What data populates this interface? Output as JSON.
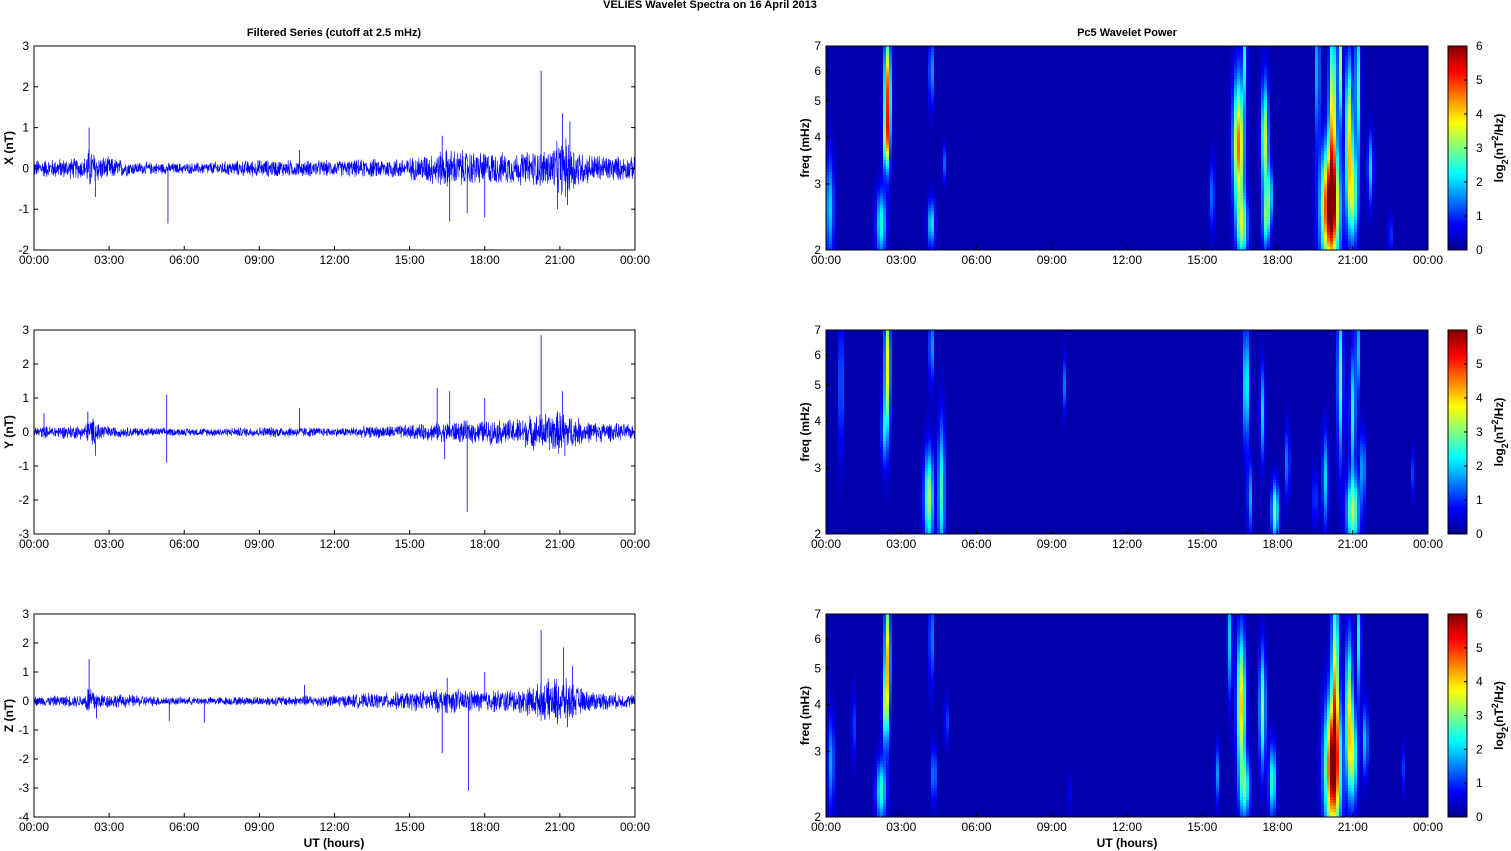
{
  "figure": {
    "title": "VELIES Wavelet Spectra on 16 April     2013",
    "left_title": "Filtered Series (cutoff at 2.5 mHz)",
    "right_title": "Pc5 Wavelet Power",
    "x_axis_label": "UT (hours)"
  },
  "chart_data": [
    {
      "type": "line",
      "component": "X",
      "ylabel": "X (nT)",
      "xlabel": "",
      "x_ticks": [
        "00:00",
        "03:00",
        "06:00",
        "09:00",
        "12:00",
        "15:00",
        "18:00",
        "21:00",
        "00:00"
      ],
      "xlim_hours": [
        0,
        24
      ],
      "ylim": [
        -2,
        3
      ],
      "y_ticks": [
        -2,
        -1,
        0,
        1,
        2,
        3
      ],
      "line_color": "#0000ff",
      "envelope": [
        [
          0,
          0.2
        ],
        [
          2,
          0.25
        ],
        [
          2.2,
          0.5
        ],
        [
          2.6,
          0.3
        ],
        [
          4,
          0.15
        ],
        [
          6,
          0.12
        ],
        [
          9,
          0.2
        ],
        [
          12,
          0.18
        ],
        [
          15,
          0.25
        ],
        [
          16.5,
          0.45
        ],
        [
          17.5,
          0.4
        ],
        [
          19,
          0.35
        ],
        [
          20.5,
          0.45
        ],
        [
          21.2,
          0.7
        ],
        [
          22,
          0.35
        ],
        [
          24,
          0.25
        ]
      ],
      "spikes": [
        [
          2.2,
          1.0
        ],
        [
          2.45,
          -0.7
        ],
        [
          5.35,
          -1.35
        ],
        [
          10.6,
          0.45
        ],
        [
          16.3,
          0.8
        ],
        [
          16.6,
          -1.3
        ],
        [
          17.3,
          -1.1
        ],
        [
          18.0,
          -1.2
        ],
        [
          20.25,
          2.4
        ],
        [
          20.9,
          -1.0
        ],
        [
          21.1,
          1.35
        ],
        [
          21.4,
          1.15
        ],
        [
          21.3,
          -0.9
        ]
      ]
    },
    {
      "type": "line",
      "component": "Y",
      "ylabel": "Y (nT)",
      "xlabel": "",
      "x_ticks": [
        "00:00",
        "03:00",
        "06:00",
        "09:00",
        "12:00",
        "15:00",
        "18:00",
        "21:00",
        "00:00"
      ],
      "xlim_hours": [
        0,
        24
      ],
      "ylim": [
        -3,
        3
      ],
      "y_ticks": [
        -3,
        -2,
        -1,
        0,
        1,
        2,
        3
      ],
      "line_color": "#0000ff",
      "envelope": [
        [
          0,
          0.15
        ],
        [
          2,
          0.2
        ],
        [
          2.3,
          0.4
        ],
        [
          3,
          0.15
        ],
        [
          6,
          0.1
        ],
        [
          10,
          0.15
        ],
        [
          12,
          0.12
        ],
        [
          15,
          0.2
        ],
        [
          17,
          0.3
        ],
        [
          19,
          0.35
        ],
        [
          21,
          0.6
        ],
        [
          22,
          0.3
        ],
        [
          24,
          0.2
        ]
      ],
      "spikes": [
        [
          0.4,
          0.55
        ],
        [
          2.15,
          0.6
        ],
        [
          2.45,
          -0.7
        ],
        [
          5.3,
          1.1
        ],
        [
          5.3,
          -0.9
        ],
        [
          10.6,
          0.7
        ],
        [
          16.1,
          1.3
        ],
        [
          16.4,
          -0.8
        ],
        [
          16.6,
          1.2
        ],
        [
          17.3,
          -2.35
        ],
        [
          18.0,
          1.0
        ],
        [
          20.25,
          2.85
        ],
        [
          21.1,
          1.2
        ],
        [
          21.2,
          -0.7
        ]
      ]
    },
    {
      "type": "line",
      "component": "Z",
      "ylabel": "Z (nT)",
      "xlabel": "UT (hours)",
      "x_ticks": [
        "00:00",
        "03:00",
        "06:00",
        "09:00",
        "12:00",
        "15:00",
        "18:00",
        "21:00",
        "00:00"
      ],
      "xlim_hours": [
        0,
        24
      ],
      "ylim": [
        -4,
        3
      ],
      "y_ticks": [
        -4,
        -3,
        -2,
        -1,
        0,
        1,
        2,
        3
      ],
      "line_color": "#0000ff",
      "envelope": [
        [
          0,
          0.15
        ],
        [
          2,
          0.2
        ],
        [
          2.2,
          0.6
        ],
        [
          2.6,
          0.25
        ],
        [
          6,
          0.12
        ],
        [
          9,
          0.15
        ],
        [
          12,
          0.2
        ],
        [
          15,
          0.3
        ],
        [
          16.5,
          0.4
        ],
        [
          18,
          0.35
        ],
        [
          19.5,
          0.4
        ],
        [
          21,
          0.8
        ],
        [
          22,
          0.35
        ],
        [
          24,
          0.2
        ]
      ],
      "spikes": [
        [
          2.2,
          1.45
        ],
        [
          2.5,
          -0.6
        ],
        [
          5.4,
          -0.7
        ],
        [
          6.8,
          -0.75
        ],
        [
          10.8,
          0.55
        ],
        [
          16.3,
          -1.8
        ],
        [
          16.5,
          0.8
        ],
        [
          17.35,
          -3.1
        ],
        [
          18.0,
          1.0
        ],
        [
          20.25,
          2.45
        ],
        [
          20.9,
          -0.8
        ],
        [
          21.15,
          1.85
        ],
        [
          21.3,
          -0.9
        ],
        [
          21.5,
          1.2
        ]
      ]
    },
    {
      "type": "heatmap",
      "component": "X",
      "title": "Pc5 Wavelet Power",
      "ylabel": "freq (mHz)",
      "xlabel": "",
      "x_ticks": [
        "00:00",
        "03:00",
        "06:00",
        "09:00",
        "12:00",
        "15:00",
        "18:00",
        "21:00",
        "00:00"
      ],
      "y_scale": "log",
      "ylim_mhz": [
        2,
        7
      ],
      "y_ticks": [
        2,
        3,
        4,
        5,
        6,
        7
      ],
      "colorbar_label": "log2(nT^2/Hz)",
      "colorbar_range": [
        0,
        6
      ],
      "colorbar_ticks": [
        0,
        1,
        2,
        3,
        4,
        5,
        6
      ],
      "colormap": "jet",
      "blobs": [
        [
          0.15,
          2.6,
          0.12,
          0.22,
          1.8
        ],
        [
          2.2,
          2.35,
          0.14,
          0.14,
          2.2
        ],
        [
          2.45,
          5.2,
          0.09,
          0.25,
          4.6
        ],
        [
          2.4,
          3.9,
          0.08,
          0.12,
          2.6
        ],
        [
          4.2,
          2.35,
          0.1,
          0.1,
          2.0
        ],
        [
          4.2,
          6.0,
          0.06,
          0.15,
          1.8
        ],
        [
          4.7,
          3.4,
          0.05,
          0.08,
          1.2
        ],
        [
          15.4,
          2.8,
          0.08,
          0.15,
          1.2
        ],
        [
          16.45,
          3.8,
          0.15,
          0.28,
          4.4
        ],
        [
          16.6,
          2.3,
          0.15,
          0.14,
          2.6
        ],
        [
          16.7,
          6.5,
          0.06,
          0.18,
          2.0
        ],
        [
          17.5,
          3.9,
          0.1,
          0.25,
          3.2
        ],
        [
          17.55,
          2.4,
          0.1,
          0.12,
          2.2
        ],
        [
          17.7,
          2.8,
          0.08,
          0.12,
          2.0
        ],
        [
          20.1,
          2.6,
          0.25,
          0.25,
          6.0
        ],
        [
          20.2,
          4.6,
          0.1,
          0.4,
          3.6
        ],
        [
          20.5,
          6.3,
          0.06,
          0.25,
          3.0
        ],
        [
          20.85,
          4.2,
          0.1,
          0.3,
          3.4
        ],
        [
          21.0,
          2.8,
          0.14,
          0.2,
          3.0
        ],
        [
          21.2,
          5.5,
          0.07,
          0.3,
          2.6
        ],
        [
          21.7,
          3.3,
          0.08,
          0.15,
          1.8
        ],
        [
          22.5,
          2.2,
          0.06,
          0.08,
          1.0
        ],
        [
          19.6,
          6.0,
          0.06,
          0.3,
          2.0
        ]
      ]
    },
    {
      "type": "heatmap",
      "component": "Y",
      "title": "",
      "ylabel": "freq (mHz)",
      "xlabel": "",
      "x_ticks": [
        "00:00",
        "03:00",
        "06:00",
        "09:00",
        "12:00",
        "15:00",
        "18:00",
        "21:00",
        "00:00"
      ],
      "y_scale": "log",
      "ylim_mhz": [
        2,
        7
      ],
      "y_ticks": [
        2,
        3,
        4,
        5,
        6,
        7
      ],
      "colorbar_label": "log2(nT^2/Hz)",
      "colorbar_range": [
        0,
        6
      ],
      "colorbar_ticks": [
        0,
        1,
        2,
        3,
        4,
        5,
        6
      ],
      "colormap": "jet",
      "blobs": [
        [
          0.6,
          5.0,
          0.07,
          0.3,
          1.3
        ],
        [
          2.45,
          5.6,
          0.08,
          0.3,
          3.6
        ],
        [
          2.3,
          3.8,
          0.07,
          0.15,
          1.6
        ],
        [
          4.1,
          2.5,
          0.13,
          0.2,
          3.0
        ],
        [
          4.6,
          2.6,
          0.1,
          0.3,
          2.3
        ],
        [
          4.2,
          6.3,
          0.06,
          0.15,
          1.8
        ],
        [
          9.5,
          5.0,
          0.05,
          0.12,
          1.2
        ],
        [
          16.75,
          5.0,
          0.08,
          0.25,
          2.4
        ],
        [
          16.9,
          2.5,
          0.07,
          0.15,
          1.6
        ],
        [
          17.4,
          4.2,
          0.07,
          0.2,
          1.8
        ],
        [
          17.9,
          2.3,
          0.1,
          0.12,
          2.8
        ],
        [
          18.4,
          3.1,
          0.06,
          0.15,
          1.5
        ],
        [
          19.9,
          2.8,
          0.08,
          0.2,
          1.8
        ],
        [
          20.5,
          5.2,
          0.08,
          0.35,
          2.4
        ],
        [
          21.0,
          2.3,
          0.18,
          0.15,
          3.0
        ],
        [
          21.0,
          4.2,
          0.08,
          0.25,
          2.2
        ],
        [
          21.4,
          3.0,
          0.08,
          0.15,
          1.6
        ],
        [
          21.2,
          6.2,
          0.06,
          0.2,
          1.8
        ],
        [
          23.4,
          2.9,
          0.05,
          0.1,
          0.9
        ],
        [
          19.5,
          2.5,
          0.07,
          0.12,
          1.0
        ]
      ]
    },
    {
      "type": "heatmap",
      "component": "Z",
      "title": "",
      "ylabel": "freq (mHz)",
      "xlabel": "UT (hours)",
      "x_ticks": [
        "00:00",
        "03:00",
        "06:00",
        "09:00",
        "12:00",
        "15:00",
        "18:00",
        "21:00",
        "00:00"
      ],
      "y_scale": "log",
      "ylim_mhz": [
        2,
        7
      ],
      "y_ticks": [
        2,
        3,
        4,
        5,
        6,
        7
      ],
      "colorbar_label": "log2(nT^2/Hz)",
      "colorbar_range": [
        0,
        6
      ],
      "colorbar_ticks": [
        0,
        1,
        2,
        3,
        4,
        5,
        6
      ],
      "colormap": "jet",
      "blobs": [
        [
          0.2,
          2.8,
          0.1,
          0.2,
          1.5
        ],
        [
          1.1,
          3.5,
          0.06,
          0.15,
          1.0
        ],
        [
          2.2,
          2.35,
          0.14,
          0.13,
          2.3
        ],
        [
          2.45,
          5.3,
          0.08,
          0.3,
          3.8
        ],
        [
          2.35,
          3.9,
          0.07,
          0.15,
          2.2
        ],
        [
          4.2,
          6.0,
          0.06,
          0.2,
          1.6
        ],
        [
          4.3,
          2.6,
          0.08,
          0.12,
          1.4
        ],
        [
          4.8,
          3.6,
          0.05,
          0.1,
          1.2
        ],
        [
          9.7,
          2.3,
          0.04,
          0.08,
          0.9
        ],
        [
          15.6,
          2.6,
          0.06,
          0.12,
          1.4
        ],
        [
          16.55,
          4.0,
          0.12,
          0.3,
          3.8
        ],
        [
          16.7,
          2.4,
          0.14,
          0.13,
          2.4
        ],
        [
          17.4,
          3.9,
          0.09,
          0.25,
          2.8
        ],
        [
          17.8,
          2.5,
          0.1,
          0.15,
          2.4
        ],
        [
          20.2,
          2.7,
          0.22,
          0.28,
          5.8
        ],
        [
          20.3,
          4.8,
          0.1,
          0.4,
          3.4
        ],
        [
          20.85,
          4.0,
          0.1,
          0.3,
          3.0
        ],
        [
          21.0,
          2.9,
          0.13,
          0.2,
          2.8
        ],
        [
          21.5,
          3.2,
          0.08,
          0.15,
          1.8
        ],
        [
          21.25,
          6.0,
          0.06,
          0.25,
          2.2
        ],
        [
          23.0,
          2.7,
          0.05,
          0.1,
          0.9
        ],
        [
          16.1,
          6.0,
          0.06,
          0.25,
          1.8
        ]
      ]
    }
  ]
}
